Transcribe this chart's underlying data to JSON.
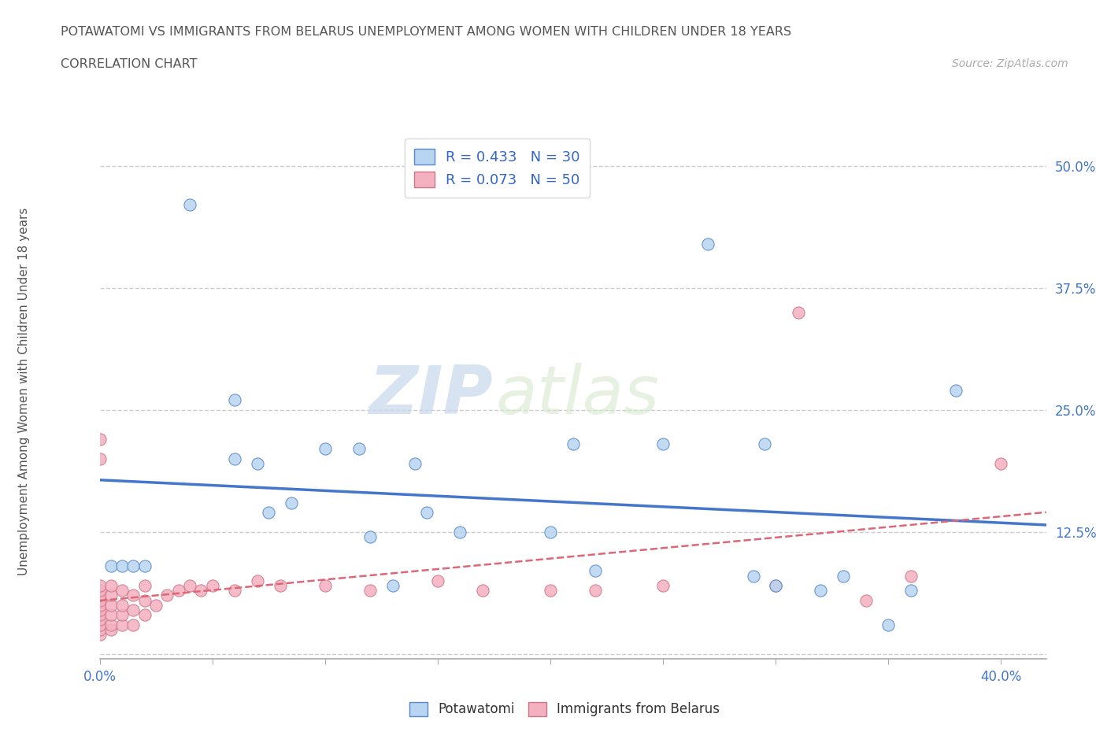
{
  "title_line1": "POTAWATOMI VS IMMIGRANTS FROM BELARUS UNEMPLOYMENT AMONG WOMEN WITH CHILDREN UNDER 18 YEARS",
  "title_line2": "CORRELATION CHART",
  "source_text": "Source: ZipAtlas.com",
  "ylabel": "Unemployment Among Women with Children Under 18 years",
  "watermark_zip": "ZIP",
  "watermark_atlas": "atlas",
  "xlim": [
    0.0,
    0.42
  ],
  "ylim": [
    -0.005,
    0.535
  ],
  "ytick_positions": [
    0.0,
    0.125,
    0.25,
    0.375,
    0.5
  ],
  "ytick_labels": [
    "",
    "12.5%",
    "25.0%",
    "37.5%",
    "50.0%"
  ],
  "xtick_positions": [
    0.0,
    0.05,
    0.1,
    0.15,
    0.2,
    0.25,
    0.3,
    0.35,
    0.4
  ],
  "xtick_labels": [
    "0.0%",
    "",
    "",
    "",
    "",
    "",
    "",
    "",
    "40.0%"
  ],
  "grid_color": "#cccccc",
  "background_color": "#ffffff",
  "potawatomi_color": "#b8d4f0",
  "potawatomi_edge": "#5588cc",
  "belarus_color": "#f5b0c0",
  "belarus_edge": "#cc7788",
  "line_blue": "#4477cc",
  "line_pink": "#dd6677",
  "potawatomi_x": [
    0.04,
    0.06,
    0.06,
    0.07,
    0.075,
    0.085,
    0.1,
    0.115,
    0.12,
    0.13,
    0.14,
    0.145,
    0.16,
    0.2,
    0.21,
    0.22,
    0.25,
    0.27,
    0.29,
    0.295,
    0.3,
    0.32,
    0.33,
    0.35,
    0.36,
    0.005,
    0.01,
    0.015,
    0.02,
    0.38
  ],
  "potawatomi_y": [
    0.46,
    0.26,
    0.2,
    0.195,
    0.145,
    0.155,
    0.21,
    0.21,
    0.12,
    0.07,
    0.195,
    0.145,
    0.125,
    0.125,
    0.215,
    0.085,
    0.215,
    0.42,
    0.08,
    0.215,
    0.07,
    0.065,
    0.08,
    0.03,
    0.065,
    0.09,
    0.09,
    0.09,
    0.09,
    0.27
  ],
  "belarus_x": [
    0.0,
    0.0,
    0.0,
    0.0,
    0.0,
    0.0,
    0.0,
    0.0,
    0.0,
    0.0,
    0.0,
    0.005,
    0.005,
    0.005,
    0.005,
    0.005,
    0.005,
    0.01,
    0.01,
    0.01,
    0.01,
    0.015,
    0.015,
    0.015,
    0.02,
    0.02,
    0.02,
    0.025,
    0.03,
    0.035,
    0.04,
    0.045,
    0.05,
    0.06,
    0.07,
    0.08,
    0.1,
    0.12,
    0.15,
    0.17,
    0.2,
    0.22,
    0.25,
    0.3,
    0.31,
    0.34,
    0.36,
    0.4,
    0.0,
    0.0
  ],
  "belarus_y": [
    0.02,
    0.025,
    0.03,
    0.035,
    0.04,
    0.045,
    0.05,
    0.055,
    0.06,
    0.065,
    0.07,
    0.025,
    0.03,
    0.04,
    0.05,
    0.06,
    0.07,
    0.03,
    0.04,
    0.05,
    0.065,
    0.03,
    0.045,
    0.06,
    0.04,
    0.055,
    0.07,
    0.05,
    0.06,
    0.065,
    0.07,
    0.065,
    0.07,
    0.065,
    0.075,
    0.07,
    0.07,
    0.065,
    0.075,
    0.065,
    0.065,
    0.065,
    0.07,
    0.07,
    0.35,
    0.055,
    0.08,
    0.195,
    0.2,
    0.22
  ]
}
